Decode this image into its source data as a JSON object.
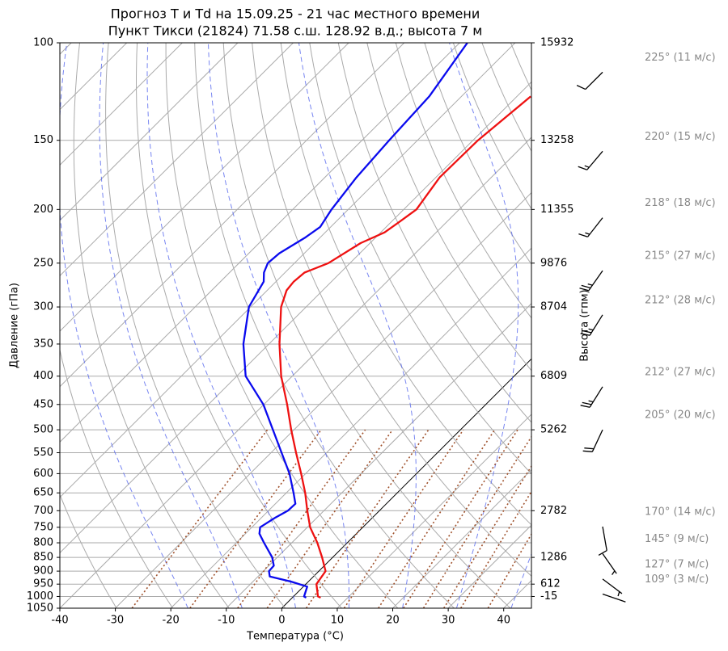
{
  "chart_data": {
    "type": "skewt",
    "title": "Прогноз T и Td на 15.09.25 - 21 час местного времени",
    "subtitle": "Пункт Тикси (21824) 71.58 с.ш. 128.92 в.д.; высота 7 м",
    "xlabel": "Температура (°C)",
    "ylabel": "Давление (гПа)",
    "y2label": "Высота (гпм)",
    "xlim": [
      -40,
      45
    ],
    "ylim": [
      1050,
      100
    ],
    "log_y": true,
    "xticks": [
      -40,
      -30,
      -20,
      -10,
      0,
      10,
      20,
      30,
      40
    ],
    "yticks": [
      100,
      150,
      200,
      250,
      300,
      350,
      400,
      450,
      500,
      550,
      600,
      650,
      700,
      750,
      800,
      850,
      900,
      950,
      1000,
      1050
    ],
    "height_axis": {
      "pressures": [
        100,
        150,
        200,
        250,
        300,
        400,
        500,
        700,
        850,
        950,
        1000
      ],
      "heights": [
        15932,
        13258,
        11355,
        9876,
        8704,
        6809,
        5262,
        2782,
        1286,
        612,
        -15
      ]
    },
    "series": [
      {
        "color": "#ee1111",
        "pressure": [
          1005,
          1000,
          950,
          900,
          850,
          800,
          750,
          700,
          650,
          600,
          550,
          500,
          450,
          400,
          350,
          300,
          280,
          270,
          260,
          250,
          230,
          220,
          210,
          200,
          175,
          150,
          125
        ],
        "values": [
          5.1,
          4.4,
          1.9,
          1.2,
          -1.9,
          -5.4,
          -9.5,
          -13.0,
          -16.6,
          -20.8,
          -25.5,
          -30.5,
          -35.8,
          -42.0,
          -48.1,
          -54.5,
          -56.5,
          -56.8,
          -56.5,
          -53.9,
          -51.7,
          -49.3,
          -48.5,
          -47.7,
          -49.3,
          -49.1,
          -47.5
        ]
      },
      {
        "color": "#0a0aee",
        "pressure": [
          1005,
          1000,
          960,
          940,
          920,
          900,
          880,
          850,
          800,
          770,
          750,
          720,
          700,
          680,
          650,
          600,
          550,
          500,
          450,
          400,
          350,
          300,
          270,
          260,
          250,
          240,
          225,
          215,
          200,
          175,
          150,
          125,
          100
        ],
        "values": [
          2.5,
          1.9,
          0.7,
          -3.1,
          -7.9,
          -9.0,
          -9.1,
          -10.9,
          -15.0,
          -17.5,
          -18.5,
          -17.5,
          -16.5,
          -16.4,
          -18.7,
          -22.9,
          -28.1,
          -33.8,
          -40.1,
          -48.4,
          -54.6,
          -60.3,
          -62.2,
          -63.8,
          -64.8,
          -64.5,
          -62.7,
          -61.9,
          -63.0,
          -64.3,
          -65.1,
          -65.8,
          -68.6
        ]
      }
    ],
    "winds": [
      {
        "pressure": 113,
        "direction": 225,
        "speed": 11,
        "label": "225° (11 м/с)"
      },
      {
        "pressure": 157,
        "direction": 220,
        "speed": 15,
        "label": "220° (15 м/с)"
      },
      {
        "pressure": 207,
        "direction": 218,
        "speed": 18,
        "label": "218° (18 м/с)"
      },
      {
        "pressure": 258,
        "direction": 215,
        "speed": 27,
        "label": "215° (27 м/с)"
      },
      {
        "pressure": 310,
        "direction": 212,
        "speed": 28,
        "label": "212° (28 м/с)"
      },
      {
        "pressure": 418,
        "direction": 212,
        "speed": 27,
        "label": "212° (27 м/с)"
      },
      {
        "pressure": 500,
        "direction": 205,
        "speed": 20,
        "label": "205° (20 м/с)"
      },
      {
        "pressure": 748,
        "direction": 170,
        "speed": 14,
        "label": "170° (14 м/с)"
      },
      {
        "pressure": 837,
        "direction": 145,
        "speed": 9,
        "label": "145° (9 м/с)"
      },
      {
        "pressure": 930,
        "direction": 127,
        "speed": 7,
        "label": "127° (7 м/с)"
      },
      {
        "pressure": 990,
        "direction": 109,
        "speed": 3,
        "label": "109° (3 м/с)"
      }
    ]
  }
}
